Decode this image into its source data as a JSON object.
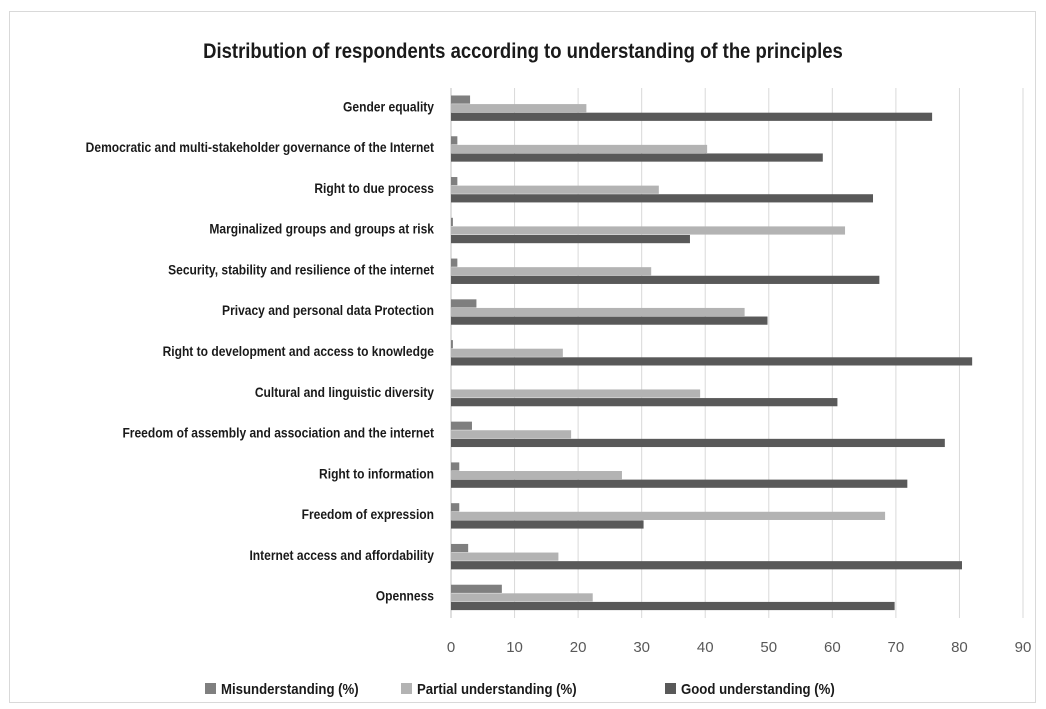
{
  "chart_data": {
    "type": "bar",
    "orientation": "horizontal",
    "title": "Distribution of respondents according to understanding of the principles",
    "categories": [
      "Gender equality",
      "Democratic and multi-stakeholder governance of the Internet",
      "Right to due process",
      "Marginalized groups and groups at risk",
      "Security, stability and resilience of the internet",
      "Privacy and personal data Protection",
      "Right to development and access to knowledge",
      "Cultural and linguistic diversity",
      "Freedom of assembly and association and the internet",
      "Right to information",
      "Freedom of expression",
      "Internet access and affordability",
      "Openness"
    ],
    "series": [
      {
        "name": "Misunderstanding (%)",
        "color": "#7f7f7f",
        "values": [
          3,
          1,
          1,
          0.3,
          1,
          4,
          0.3,
          0,
          3.3,
          1.3,
          1.3,
          2.7,
          8
        ]
      },
      {
        "name": "Partial understanding (%)",
        "color": "#b3b3b3",
        "values": [
          21.3,
          40.3,
          32.7,
          62,
          31.5,
          46.2,
          17.6,
          39.2,
          18.9,
          26.9,
          68.3,
          16.9,
          22.3
        ]
      },
      {
        "name": "Good understanding (%)",
        "color": "#595959",
        "values": [
          75.7,
          58.5,
          66.4,
          37.6,
          67.4,
          49.8,
          82,
          60.8,
          77.7,
          71.8,
          30.3,
          80.4,
          69.8
        ]
      }
    ],
    "xlim": [
      0,
      90
    ],
    "xticks": [
      0,
      10,
      20,
      30,
      40,
      50,
      60,
      70,
      80,
      90
    ],
    "xlabel": "",
    "ylabel": "",
    "grid": "vertical",
    "legend_position": "bottom"
  }
}
